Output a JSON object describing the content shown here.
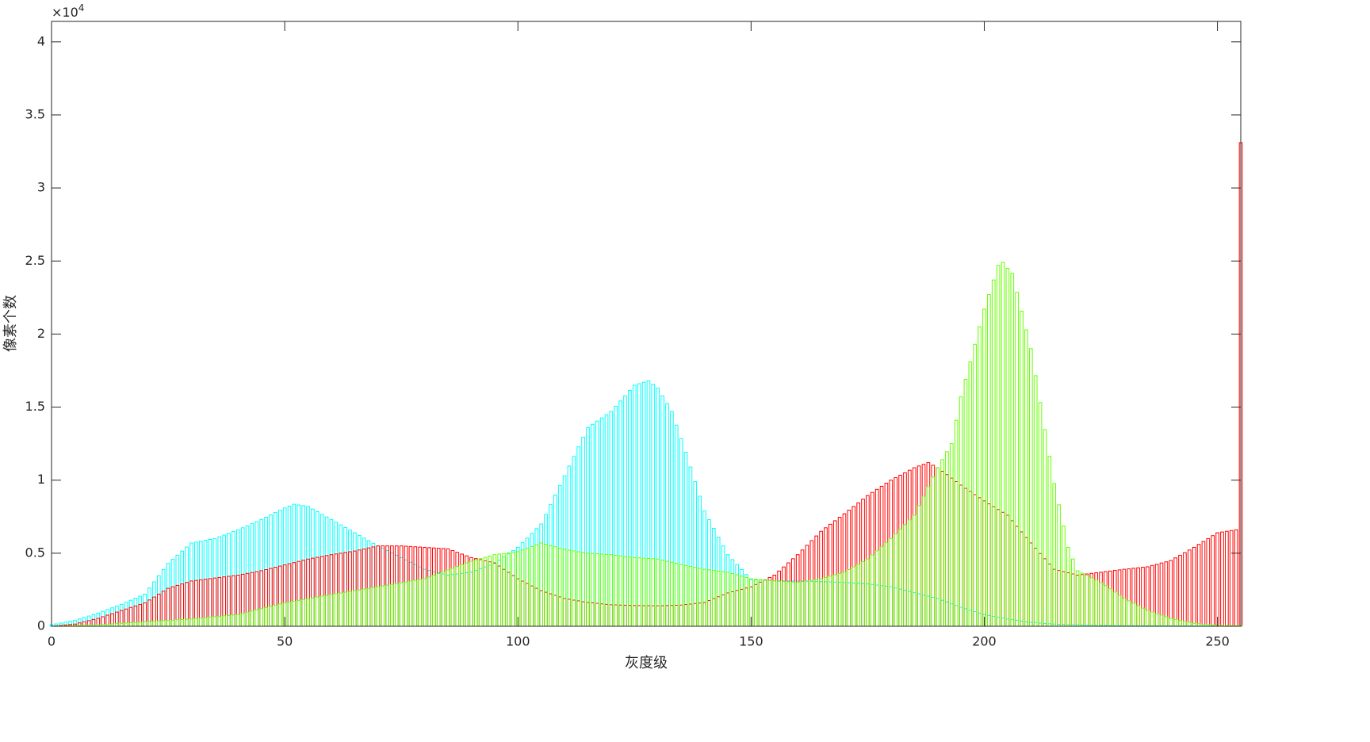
{
  "chart_data": {
    "type": "bar",
    "x_label": "灰度级",
    "y_label": "像素个数",
    "y_multiplier": {
      "base": "×10",
      "exponent": "4"
    },
    "xlim": [
      0,
      255
    ],
    "xticks": [
      0,
      50,
      100,
      150,
      200,
      250
    ],
    "ylim": [
      0,
      41400
    ],
    "yticks": [
      0,
      {
        "value": 5000,
        "label": "0.5"
      },
      {
        "value": 10000,
        "label": "1"
      },
      {
        "value": 15000,
        "label": "1.5"
      },
      {
        "value": 20000,
        "label": "2"
      },
      {
        "value": 25000,
        "label": "2.5"
      },
      {
        "value": 30000,
        "label": "3"
      },
      {
        "value": 35000,
        "label": "3.5"
      },
      {
        "value": 40000,
        "label": "4"
      }
    ],
    "x": [
      0,
      1,
      2,
      3,
      4,
      5,
      6,
      7,
      8,
      9,
      10,
      11,
      12,
      13,
      14,
      15,
      16,
      17,
      18,
      19,
      20,
      21,
      22,
      23,
      24,
      25,
      26,
      27,
      28,
      29,
      30,
      31,
      32,
      33,
      34,
      35,
      36,
      37,
      38,
      39,
      40,
      41,
      42,
      43,
      44,
      45,
      46,
      47,
      48,
      49,
      50,
      51,
      52,
      53,
      54,
      55,
      56,
      57,
      58,
      59,
      60,
      61,
      62,
      63,
      64,
      65,
      66,
      67,
      68,
      69,
      70,
      71,
      72,
      73,
      74,
      75,
      76,
      77,
      78,
      79,
      80,
      81,
      82,
      83,
      84,
      85,
      86,
      87,
      88,
      89,
      90,
      91,
      92,
      93,
      94,
      95,
      96,
      97,
      98,
      99,
      100,
      101,
      102,
      103,
      104,
      105,
      106,
      107,
      108,
      109,
      110,
      111,
      112,
      113,
      114,
      115,
      116,
      117,
      118,
      119,
      120,
      121,
      122,
      123,
      124,
      125,
      126,
      127,
      128,
      129,
      130,
      131,
      132,
      133,
      134,
      135,
      136,
      137,
      138,
      139,
      140,
      141,
      142,
      143,
      144,
      145,
      146,
      147,
      148,
      149,
      150,
      151,
      152,
      153,
      154,
      155,
      156,
      157,
      158,
      159,
      160,
      161,
      162,
      163,
      164,
      165,
      166,
      167,
      168,
      169,
      170,
      171,
      172,
      173,
      174,
      175,
      176,
      177,
      178,
      179,
      180,
      181,
      182,
      183,
      184,
      185,
      186,
      187,
      188,
      189,
      190,
      191,
      192,
      193,
      194,
      195,
      196,
      197,
      198,
      199,
      200,
      201,
      202,
      203,
      204,
      205,
      206,
      207,
      208,
      209,
      210,
      211,
      212,
      213,
      214,
      215,
      216,
      217,
      218,
      219,
      220,
      221,
      222,
      223,
      224,
      225,
      226,
      227,
      228,
      229,
      230,
      231,
      232,
      233,
      234,
      235,
      236,
      237,
      238,
      239,
      240,
      241,
      242,
      243,
      244,
      245,
      246,
      247,
      248,
      249,
      250,
      251,
      252,
      253,
      254,
      255
    ],
    "series": [
      {
        "color": "#00ffff",
        "values": [
          100,
          160,
          220,
          280,
          340,
          400,
          500,
          600,
          700,
          800,
          900,
          1020,
          1140,
          1260,
          1380,
          1500,
          1640,
          1780,
          1920,
          2060,
          2200,
          2620,
          3040,
          3460,
          3880,
          4300,
          4580,
          4860,
          5140,
          5420,
          5700,
          5760,
          5820,
          5880,
          5940,
          6000,
          6120,
          6240,
          6360,
          6480,
          6600,
          6740,
          6880,
          7020,
          7160,
          7300,
          7460,
          7620,
          7780,
          7940,
          8100,
          8220,
          8350,
          8300,
          8250,
          8200,
          8020,
          7840,
          7660,
          7480,
          7300,
          7120,
          6940,
          6760,
          6580,
          6400,
          6220,
          6040,
          5860,
          5680,
          5500,
          5340,
          5180,
          5020,
          4860,
          4700,
          4540,
          4380,
          4220,
          4060,
          3900,
          3820,
          3740,
          3660,
          3580,
          3500,
          3540,
          3580,
          3620,
          3660,
          3700,
          3820,
          3940,
          4060,
          4180,
          4300,
          4520,
          4740,
          4960,
          5180,
          5400,
          5720,
          6040,
          6360,
          6680,
          7000,
          7660,
          8320,
          8980,
          9640,
          10300,
          10960,
          11620,
          12280,
          12940,
          13600,
          13820,
          14040,
          14260,
          14480,
          14700,
          15060,
          15420,
          15780,
          16140,
          16500,
          16600,
          16700,
          16800,
          16550,
          16300,
          15770,
          15240,
          14700,
          13770,
          12840,
          11900,
          10900,
          9900,
          8900,
          7900,
          7300,
          6700,
          6100,
          5500,
          4900,
          4560,
          4220,
          3880,
          3540,
          3200,
          3180,
          3160,
          3140,
          3120,
          3100,
          3100,
          3100,
          3100,
          3100,
          3100,
          3090,
          3080,
          3070,
          3060,
          3050,
          3040,
          3030,
          3020,
          3010,
          3000,
          2980,
          2960,
          2940,
          2920,
          2900,
          2860,
          2820,
          2780,
          2740,
          2700,
          2620,
          2540,
          2460,
          2380,
          2300,
          2220,
          2140,
          2060,
          1980,
          1900,
          1780,
          1660,
          1540,
          1420,
          1300,
          1200,
          1100,
          1000,
          900,
          800,
          740,
          680,
          620,
          560,
          500,
          450,
          400,
          350,
          300,
          270,
          250,
          220,
          190,
          170,
          150,
          140,
          130,
          120,
          110,
          100,
          90,
          80,
          70,
          65,
          60,
          55,
          50,
          45,
          42,
          40,
          39,
          38,
          37,
          36,
          35,
          34,
          33,
          32,
          31,
          30,
          29,
          28,
          27,
          26,
          25,
          24,
          23,
          22,
          22,
          21,
          21,
          20,
          20,
          20,
          20
        ]
      },
      {
        "color": "#ff0000",
        "values": [
          0,
          30,
          60,
          90,
          120,
          150,
          230,
          310,
          390,
          470,
          540,
          650,
          760,
          860,
          970,
          1080,
          1180,
          1290,
          1390,
          1500,
          1600,
          1800,
          2000,
          2200,
          2400,
          2600,
          2700,
          2800,
          2900,
          3000,
          3100,
          3140,
          3180,
          3220,
          3260,
          3300,
          3340,
          3380,
          3420,
          3460,
          3500,
          3560,
          3620,
          3680,
          3740,
          3800,
          3880,
          3960,
          4040,
          4120,
          4200,
          4280,
          4360,
          4440,
          4520,
          4600,
          4660,
          4720,
          4780,
          4840,
          4900,
          4950,
          5000,
          5050,
          5100,
          5150,
          5220,
          5290,
          5360,
          5430,
          5500,
          5500,
          5500,
          5500,
          5500,
          5500,
          5480,
          5460,
          5440,
          5420,
          5400,
          5380,
          5360,
          5340,
          5320,
          5300,
          5180,
          5060,
          4940,
          4820,
          4700,
          4630,
          4560,
          4480,
          4410,
          4340,
          4120,
          3900,
          3690,
          3470,
          3250,
          3090,
          2930,
          2760,
          2600,
          2440,
          2330,
          2220,
          2120,
          2010,
          1900,
          1850,
          1790,
          1740,
          1680,
          1630,
          1600,
          1570,
          1530,
          1500,
          1470,
          1460,
          1450,
          1440,
          1430,
          1420,
          1420,
          1410,
          1410,
          1400,
          1400,
          1410,
          1420,
          1430,
          1440,
          1450,
          1490,
          1520,
          1560,
          1590,
          1630,
          1760,
          1890,
          2020,
          2150,
          2280,
          2360,
          2450,
          2530,
          2620,
          2700,
          2860,
          3020,
          3180,
          3340,
          3500,
          3780,
          4060,
          4340,
          4620,
          4900,
          5220,
          5540,
          5860,
          6180,
          6500,
          6740,
          6980,
          7220,
          7460,
          7700,
          7950,
          8200,
          8450,
          8700,
          8950,
          9160,
          9370,
          9580,
          9790,
          10000,
          10170,
          10340,
          10510,
          10680,
          10850,
          10970,
          11080,
          11200,
          11020,
          10850,
          10610,
          10380,
          10140,
          9900,
          9660,
          9440,
          9230,
          9010,
          8800,
          8580,
          8380,
          8190,
          7990,
          7800,
          7600,
          7220,
          6840,
          6460,
          6080,
          5700,
          5340,
          4980,
          4620,
          4260,
          3900,
          3820,
          3740,
          3660,
          3580,
          3500,
          3540,
          3580,
          3620,
          3660,
          3700,
          3740,
          3780,
          3820,
          3860,
          3900,
          3930,
          3970,
          4000,
          4040,
          4070,
          4160,
          4240,
          4330,
          4410,
          4500,
          4680,
          4860,
          5040,
          5220,
          5400,
          5600,
          5800,
          6000,
          6200,
          6400,
          6450,
          6500,
          6550,
          6600,
          33100
        ]
      },
      {
        "color": "#66ff00",
        "values": [
          0,
          10,
          20,
          30,
          40,
          50,
          60,
          70,
          80,
          90,
          100,
          120,
          140,
          160,
          180,
          200,
          220,
          240,
          260,
          280,
          300,
          320,
          340,
          360,
          380,
          400,
          420,
          440,
          460,
          480,
          500,
          530,
          560,
          590,
          620,
          650,
          680,
          710,
          740,
          770,
          800,
          880,
          960,
          1040,
          1120,
          1200,
          1280,
          1360,
          1440,
          1520,
          1600,
          1660,
          1710,
          1770,
          1830,
          1890,
          1940,
          2000,
          2060,
          2110,
          2170,
          2220,
          2270,
          2330,
          2380,
          2440,
          2490,
          2540,
          2590,
          2650,
          2700,
          2760,
          2810,
          2870,
          2920,
          2980,
          3030,
          3090,
          3140,
          3200,
          3250,
          3370,
          3490,
          3610,
          3730,
          3850,
          3970,
          4090,
          4210,
          4330,
          4450,
          4540,
          4630,
          4720,
          4810,
          4900,
          4940,
          4980,
          5020,
          5060,
          5100,
          5220,
          5340,
          5460,
          5580,
          5700,
          5610,
          5520,
          5440,
          5350,
          5260,
          5210,
          5160,
          5100,
          5050,
          5000,
          4980,
          4960,
          4940,
          4920,
          4900,
          4860,
          4820,
          4780,
          4740,
          4700,
          4680,
          4660,
          4640,
          4620,
          4600,
          4530,
          4450,
          4380,
          4300,
          4230,
          4160,
          4100,
          4030,
          3970,
          3900,
          3860,
          3820,
          3780,
          3740,
          3700,
          3610,
          3520,
          3430,
          3340,
          3250,
          3220,
          3190,
          3160,
          3130,
          3100,
          3080,
          3060,
          3040,
          3020,
          3000,
          3050,
          3100,
          3150,
          3200,
          3250,
          3340,
          3430,
          3520,
          3610,
          3700,
          3880,
          4060,
          4240,
          4420,
          4600,
          4880,
          5160,
          5440,
          5720,
          6000,
          6320,
          6640,
          6960,
          7280,
          7600,
          8250,
          8900,
          9550,
          10200,
          10850,
          11400,
          11950,
          12500,
          14100,
          15700,
          16900,
          18100,
          19300,
          20500,
          21700,
          22700,
          23700,
          24700,
          24900,
          24500,
          24150,
          22860,
          21570,
          20290,
          19000,
          17150,
          15310,
          13460,
          11620,
          9770,
          8310,
          6860,
          5400,
          4600,
          3800,
          3640,
          3480,
          3320,
          3160,
          3000,
          2780,
          2560,
          2340,
          2120,
          1900,
          1740,
          1570,
          1410,
          1240,
          1080,
          970,
          860,
          760,
          650,
          540,
          470,
          400,
          340,
          270,
          200,
          170,
          140,
          120,
          90,
          60,
          55,
          50,
          45,
          40,
          30
        ]
      }
    ]
  }
}
